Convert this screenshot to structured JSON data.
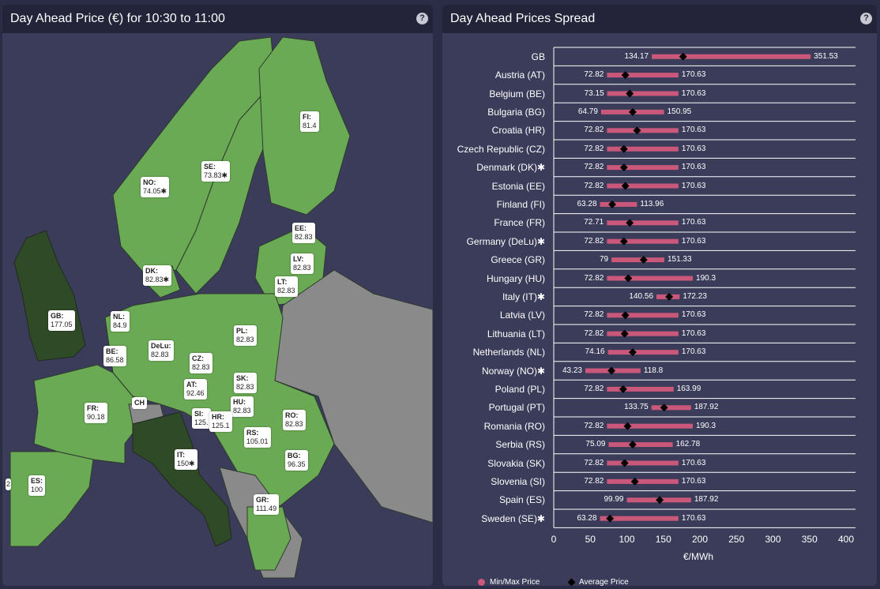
{
  "map_panel": {
    "title": "Day Ahead Price (€) for 10:30 to 11:00",
    "help": "?",
    "labels": [
      {
        "code": "FI:",
        "value": "81.4"
      },
      {
        "code": "SE:",
        "value": "73.83✱"
      },
      {
        "code": "NO:",
        "value": "74.05✱"
      },
      {
        "code": "EE:",
        "value": "82.83"
      },
      {
        "code": "LV:",
        "value": "82.83"
      },
      {
        "code": "LT:",
        "value": "82.83"
      },
      {
        "code": "DK:",
        "value": "82.83✱"
      },
      {
        "code": "GB:",
        "value": "177.05"
      },
      {
        "code": "NL:",
        "value": "84.9"
      },
      {
        "code": "BE:",
        "value": "86.58"
      },
      {
        "code": "DeLu:",
        "value": "82.83"
      },
      {
        "code": "PL:",
        "value": "82.83"
      },
      {
        "code": "CZ:",
        "value": "82.83"
      },
      {
        "code": "SK:",
        "value": "82.83"
      },
      {
        "code": "AT:",
        "value": "92.46"
      },
      {
        "code": "HU:",
        "value": "82.83"
      },
      {
        "code": "FR:",
        "value": "90.18"
      },
      {
        "code": "CH",
        "value": ""
      },
      {
        "code": "SI:",
        "value": "125."
      },
      {
        "code": "HR:",
        "value": "125.1"
      },
      {
        "code": "RO:",
        "value": "82.83"
      },
      {
        "code": "RS:",
        "value": "105.01"
      },
      {
        "code": "BG:",
        "value": "96.35"
      },
      {
        "code": "IT:",
        "value": "150✱"
      },
      {
        "code": "ES:",
        "value": "100"
      },
      {
        "code": "",
        "value": "2"
      },
      {
        "code": "GR:",
        "value": "111.49"
      }
    ]
  },
  "spread_panel": {
    "title": "Day Ahead Prices Spread",
    "help": "?",
    "xlabel": "€/MWh",
    "legend": {
      "minmax": "Min/Max Price",
      "avg": "Average Price"
    },
    "colors": {
      "bar": "#c9587b",
      "avg": "#000000",
      "grid": "#ffffff"
    }
  },
  "chart_data": {
    "type": "bar",
    "orientation": "horizontal-range",
    "xlabel": "€/MWh",
    "xlim": [
      0,
      400
    ],
    "xticks": [
      0,
      50,
      100,
      150,
      200,
      250,
      300,
      350,
      400
    ],
    "categories": [
      "GB",
      "Austria (AT)",
      "Belgium (BE)",
      "Bulgaria (BG)",
      "Croatia (HR)",
      "Czech Republic (CZ)",
      "Denmark (DK)✱",
      "Estonia (EE)",
      "Finland (FI)",
      "France (FR)",
      "Germany (DeLu)✱",
      "Greece (GR)",
      "Hungary (HU)",
      "Italy (IT)✱",
      "Latvia (LV)",
      "Lithuania (LT)",
      "Netherlands (NL)",
      "Norway (NO)✱",
      "Poland (PL)",
      "Portugal (PT)",
      "Romania (RO)",
      "Serbia (RS)",
      "Slovakia (SK)",
      "Slovenia (SI)",
      "Spain (ES)",
      "Sweden (SE)✱"
    ],
    "series": [
      {
        "name": "Min/Max Price",
        "min": [
          134.17,
          72.82,
          73.15,
          64.79,
          72.82,
          72.82,
          72.82,
          72.82,
          63.28,
          72.71,
          72.82,
          79,
          72.82,
          140.56,
          72.82,
          72.82,
          74.16,
          43.23,
          72.82,
          133.75,
          72.82,
          75.09,
          72.82,
          72.82,
          99.99,
          63.28
        ],
        "max": [
          351.53,
          170.63,
          170.63,
          150.95,
          170.63,
          170.63,
          170.63,
          170.63,
          113.96,
          170.63,
          170.63,
          151.33,
          190.3,
          172.23,
          170.63,
          170.63,
          170.63,
          118.8,
          163.99,
          187.92,
          190.3,
          162.78,
          170.63,
          170.63,
          187.92,
          170.63
        ]
      },
      {
        "name": "Average Price",
        "values": [
          177,
          98,
          104,
          108,
          114,
          96,
          96,
          98,
          80,
          104,
          96,
          123,
          102,
          158,
          98,
          97,
          108,
          79,
          95,
          151,
          101,
          108,
          97,
          111,
          145,
          77
        ]
      }
    ]
  }
}
